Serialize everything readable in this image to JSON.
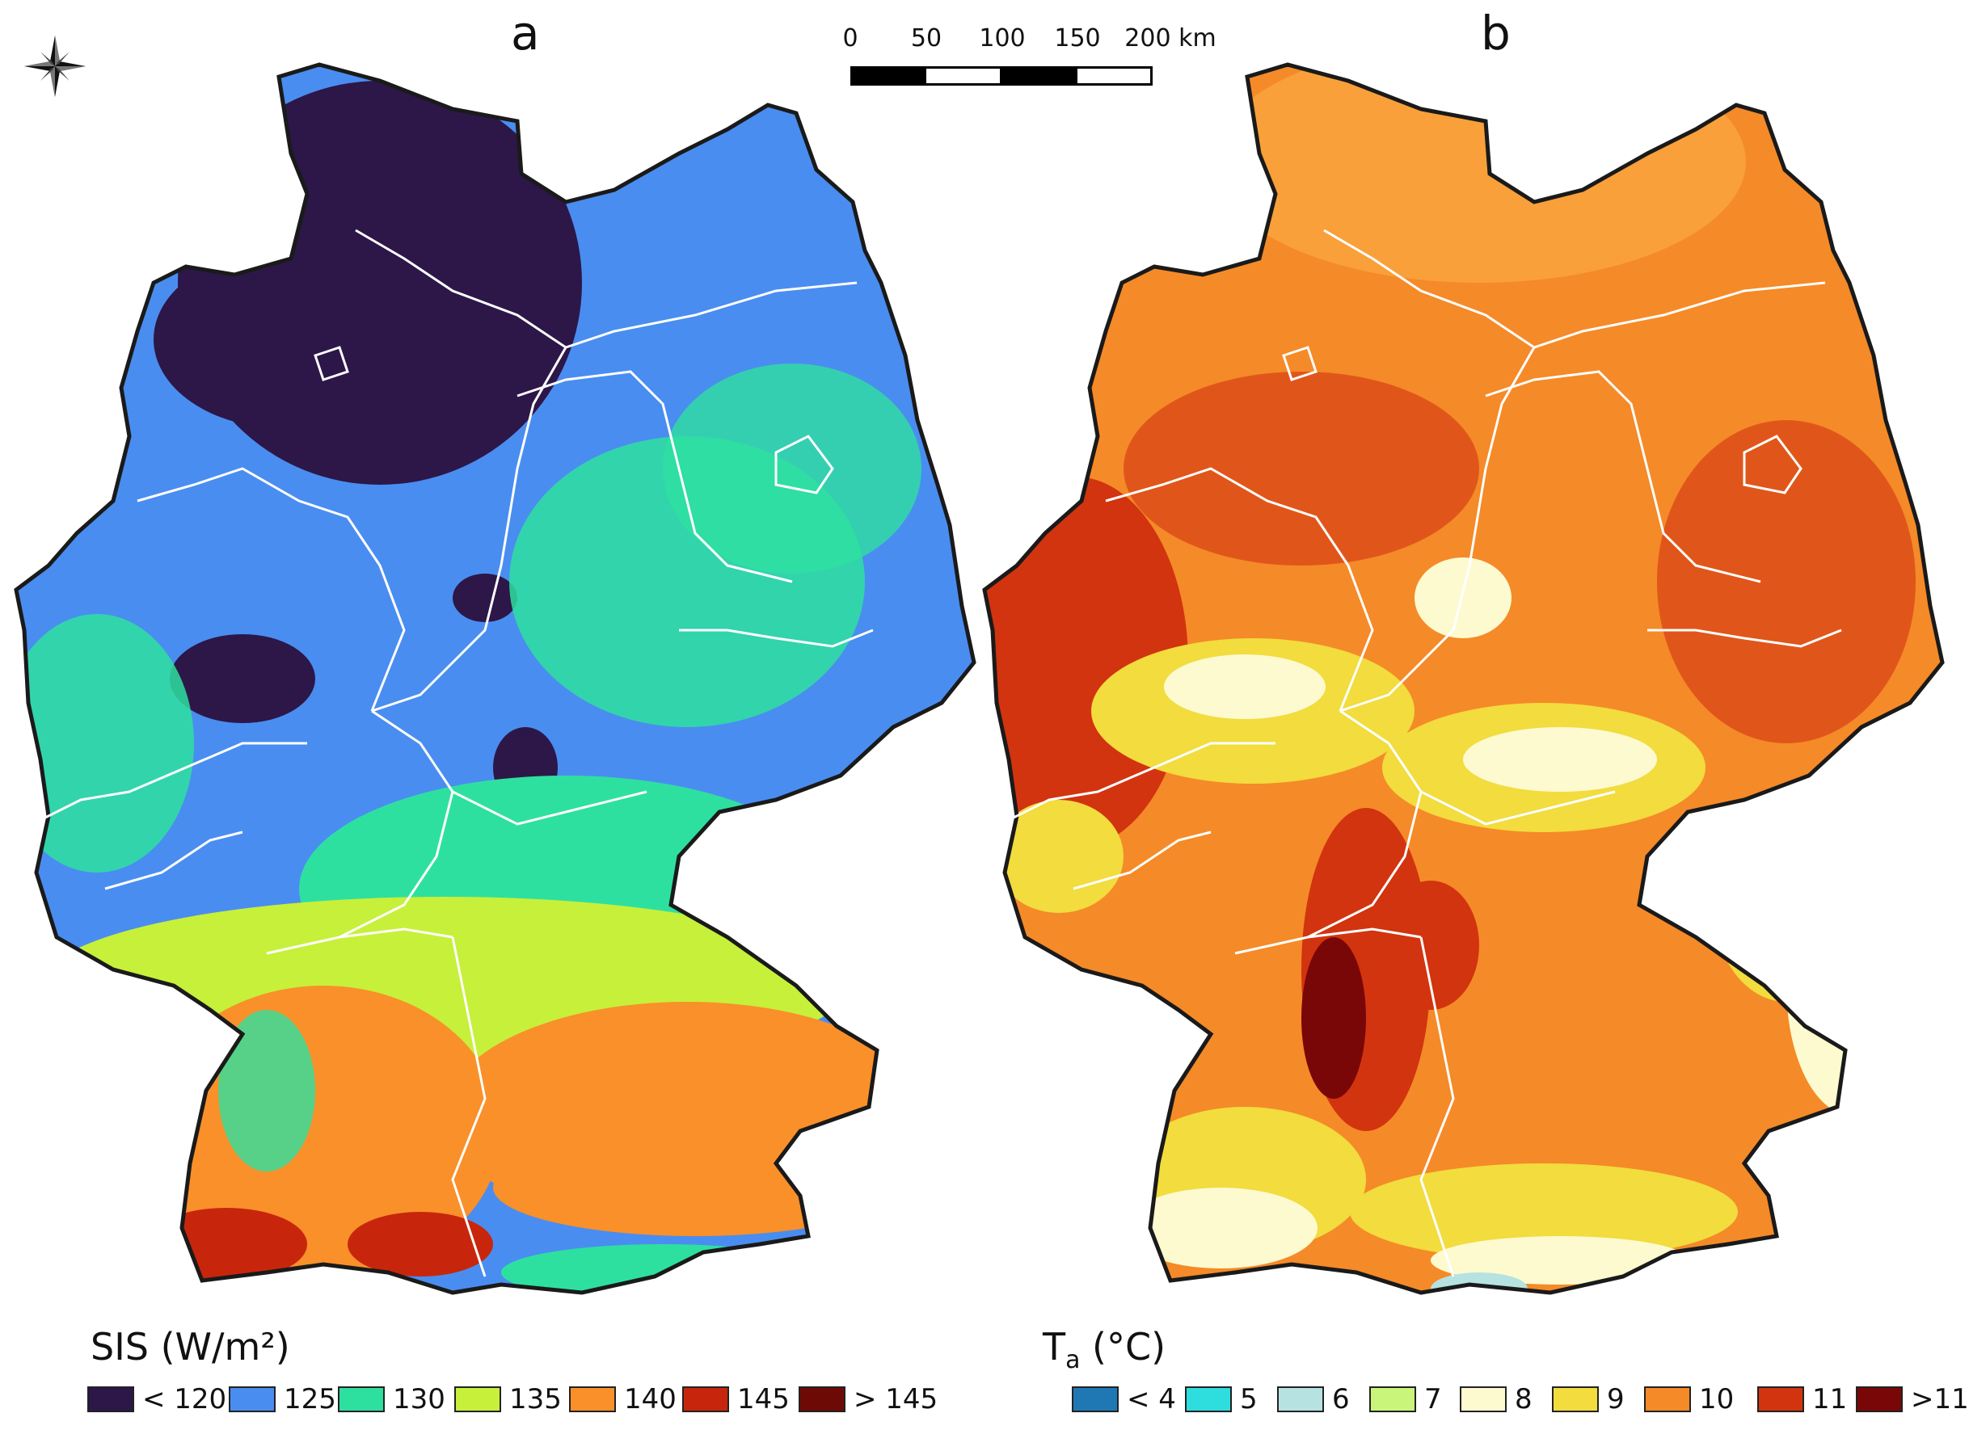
{
  "panels": {
    "a": {
      "label": "a"
    },
    "b": {
      "label": "b"
    }
  },
  "scalebar": {
    "ticks": [
      "0",
      "50",
      "100",
      "150",
      "200 km"
    ],
    "segment_colors": [
      "#000000",
      "#ffffff",
      "#000000",
      "#ffffff"
    ]
  },
  "compass": {
    "icon": "compass-rose-icon"
  },
  "legend_a": {
    "title": "SIS (W/m²)",
    "items": [
      {
        "label": "< 120",
        "color": "#2c1748"
      },
      {
        "label": "125",
        "color": "#4a8df0"
      },
      {
        "label": "130",
        "color": "#2ee0a0"
      },
      {
        "label": "135",
        "color": "#c7f03a"
      },
      {
        "label": "140",
        "color": "#f9902a"
      },
      {
        "label": "145",
        "color": "#c8260c"
      },
      {
        "label": "> 145",
        "color": "#6e0a06"
      }
    ]
  },
  "legend_b": {
    "title_main": "T",
    "title_sub": "a",
    "title_unit": " (°C)",
    "items": [
      {
        "label": "< 4",
        "color": "#1f78b4"
      },
      {
        "label": "5",
        "color": "#2edede"
      },
      {
        "label": "6",
        "color": "#b6e2e2"
      },
      {
        "label": "7",
        "color": "#c9f57a"
      },
      {
        "label": "8",
        "color": "#fdfad0"
      },
      {
        "label": "9",
        "color": "#f2dc3e"
      },
      {
        "label": "10",
        "color": "#f58a28"
      },
      {
        "label": "11",
        "color": "#d2340f"
      },
      {
        "label": ">11",
        "color": "#7a0707"
      }
    ]
  }
}
